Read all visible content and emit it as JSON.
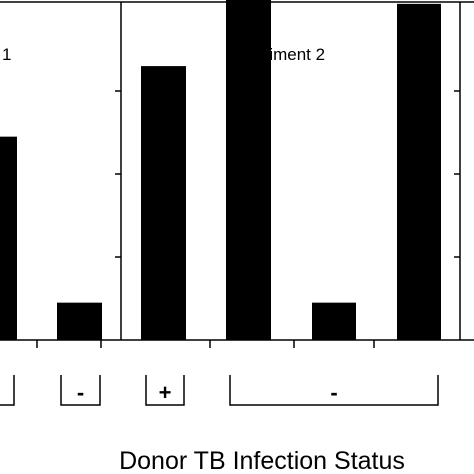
{
  "chart_data": [
    {
      "type": "bar",
      "title": "1",
      "title_note": "partially cropped at left edge; prefix not visible",
      "categories": [
        "",
        "-"
      ],
      "values": [
        2.45,
        0.45
      ],
      "ylim": [
        0,
        4
      ],
      "group_labels": [
        "",
        "-"
      ]
    },
    {
      "type": "bar",
      "title": "Experiment 2",
      "categories": [
        "+",
        "",
        "-",
        ""
      ],
      "values": [
        3.3,
        4.1,
        0.45,
        4.05
      ],
      "ylim": [
        0,
        4
      ],
      "group_labels": [
        "+",
        "-"
      ]
    }
  ],
  "xlabel": "Donor TB Infection Status",
  "colors": {
    "bar": "#000000",
    "axis": "#000000",
    "background": "#ffffff"
  }
}
